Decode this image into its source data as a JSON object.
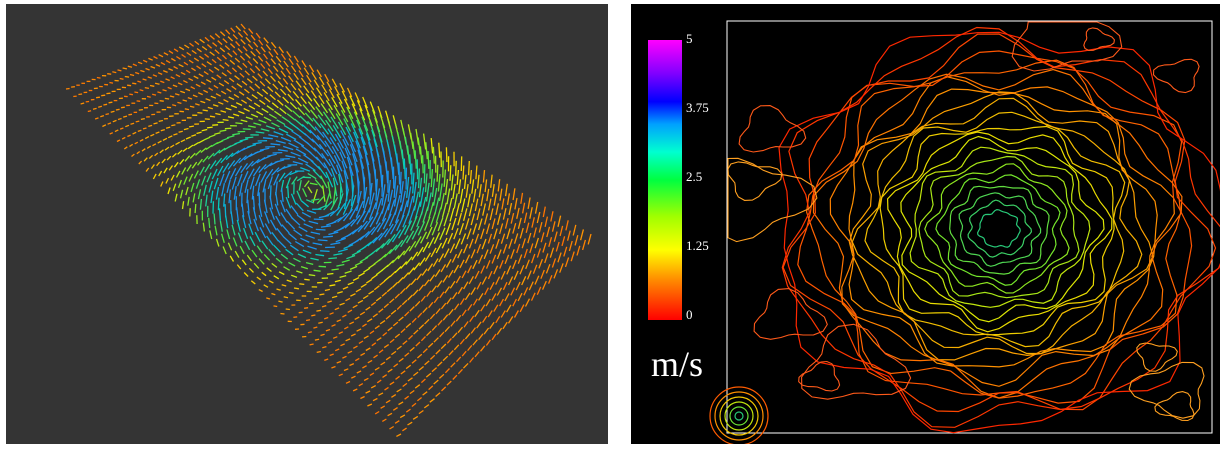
{
  "left_panel": {
    "background": "#343434",
    "description_colors": [
      "#ff3300",
      "#ff9900",
      "#ffee00",
      "#44ff44",
      "#00ddcc",
      "#2288ff"
    ]
  },
  "right_panel": {
    "background": "#000000",
    "colorbar": {
      "ticks": [
        "5",
        "3.75",
        "2.5",
        "1.25",
        "0"
      ],
      "unit": "m/s",
      "min": 0,
      "max": 5
    }
  }
}
